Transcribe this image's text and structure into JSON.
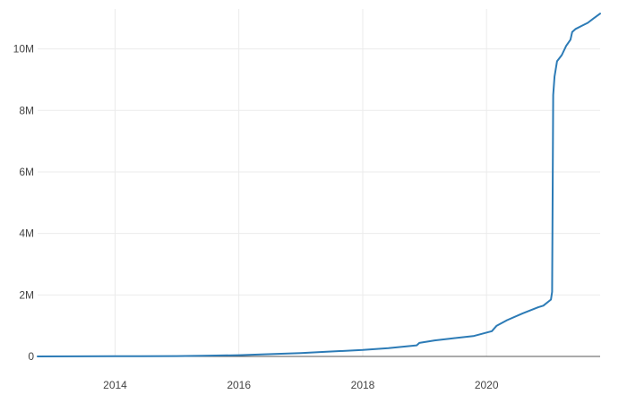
{
  "chart_data": {
    "type": "line",
    "title": "",
    "xlabel": "",
    "ylabel": "",
    "x_ticks": [
      "2014",
      "2016",
      "2018",
      "2020"
    ],
    "y_ticks": [
      "0",
      "2M",
      "4M",
      "6M",
      "8M",
      "10M"
    ],
    "xlim": [
      "2012-10-01",
      "2021-11-01"
    ],
    "ylim": [
      0,
      11300000
    ],
    "grid": true,
    "series": [
      {
        "color": "#2c7bb6",
        "x": [
          "2012-10-01",
          "2013-06-01",
          "2014-01-01",
          "2014-06-01",
          "2015-01-01",
          "2015-06-01",
          "2016-01-01",
          "2016-06-01",
          "2017-01-01",
          "2017-06-01",
          "2018-01-01",
          "2018-06-01",
          "2018-11-15",
          "2018-12-01",
          "2019-03-01",
          "2019-06-01",
          "2019-10-15",
          "2020-02-01",
          "2020-03-01",
          "2020-05-01",
          "2020-08-01",
          "2020-11-01",
          "2020-12-01",
          "2021-01-15",
          "2021-01-22",
          "2021-01-28",
          "2021-02-05",
          "2021-02-20",
          "2021-03-20",
          "2021-04-15",
          "2021-05-10",
          "2021-05-20",
          "2021-06-10",
          "2021-07-15",
          "2021-08-20",
          "2021-09-25",
          "2021-11-01"
        ],
        "y": [
          0,
          2000,
          5000,
          8000,
          12000,
          20000,
          40000,
          70000,
          110000,
          150000,
          210000,
          270000,
          360000,
          440000,
          520000,
          580000,
          660000,
          820000,
          1000000,
          1180000,
          1400000,
          1600000,
          1650000,
          1850000,
          2100000,
          8500000,
          9100000,
          9600000,
          9800000,
          10100000,
          10300000,
          10550000,
          10650000,
          10750000,
          10850000,
          11000000,
          11150000
        ]
      }
    ]
  }
}
